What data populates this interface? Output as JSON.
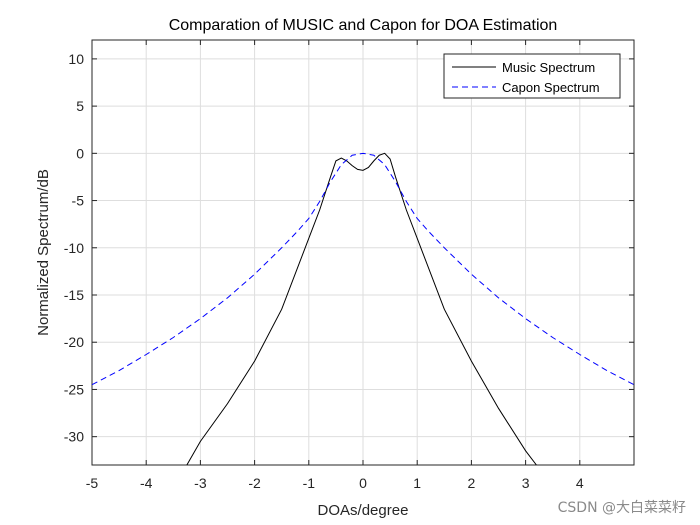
{
  "chart_data": {
    "type": "line",
    "title": "Comparation of MUSIC and Capon for DOA Estimation",
    "xlabel": "DOAs/degree",
    "ylabel": "Normalized Spectrum/dB",
    "xlim": [
      -5,
      5
    ],
    "ylim": [
      -33,
      12
    ],
    "xticks": [
      -5,
      -4,
      -3,
      -2,
      -1,
      0,
      1,
      2,
      3,
      4
    ],
    "yticks": [
      10,
      5,
      0,
      -5,
      -10,
      -15,
      -20,
      -25,
      -30
    ],
    "grid": true,
    "legend_position": "top-right",
    "series": [
      {
        "name": "Music Spectrum",
        "color": "#000000",
        "style": "solid",
        "x": [
          -3.25,
          -3.0,
          -2.5,
          -2.0,
          -1.5,
          -1.0,
          -0.8,
          -0.6,
          -0.5,
          -0.4,
          -0.3,
          -0.2,
          -0.1,
          0.0,
          0.1,
          0.2,
          0.3,
          0.4,
          0.5,
          0.6,
          0.8,
          1.0,
          1.5,
          2.0,
          2.5,
          3.0,
          3.2
        ],
        "y": [
          -33,
          -30.5,
          -26.5,
          -22.0,
          -16.5,
          -9.0,
          -6.0,
          -2.5,
          -0.8,
          -0.5,
          -0.8,
          -1.3,
          -1.7,
          -1.8,
          -1.5,
          -0.8,
          -0.2,
          0.0,
          -0.6,
          -2.5,
          -6.0,
          -9.0,
          -16.5,
          -22.0,
          -27.0,
          -31.5,
          -33
        ]
      },
      {
        "name": "Capon Spectrum",
        "color": "#0000ff",
        "style": "dashed",
        "x": [
          -5,
          -4.5,
          -4,
          -3.5,
          -3,
          -2.5,
          -2,
          -1.5,
          -1.2,
          -1.0,
          -0.8,
          -0.6,
          -0.4,
          -0.2,
          0.0,
          0.2,
          0.4,
          0.6,
          0.8,
          1.0,
          1.2,
          1.5,
          2,
          2.5,
          3,
          3.5,
          4,
          4.5,
          5
        ],
        "y": [
          -24.5,
          -23.0,
          -21.3,
          -19.5,
          -17.5,
          -15.3,
          -12.8,
          -10.0,
          -8.2,
          -6.9,
          -5.1,
          -3.0,
          -1.2,
          -0.2,
          0.0,
          -0.2,
          -1.2,
          -3.0,
          -5.1,
          -6.9,
          -8.2,
          -10.0,
          -12.8,
          -15.3,
          -17.5,
          -19.5,
          -21.3,
          -23.0,
          -24.5
        ]
      }
    ]
  },
  "watermark": "CSDN @大白菜菜籽"
}
